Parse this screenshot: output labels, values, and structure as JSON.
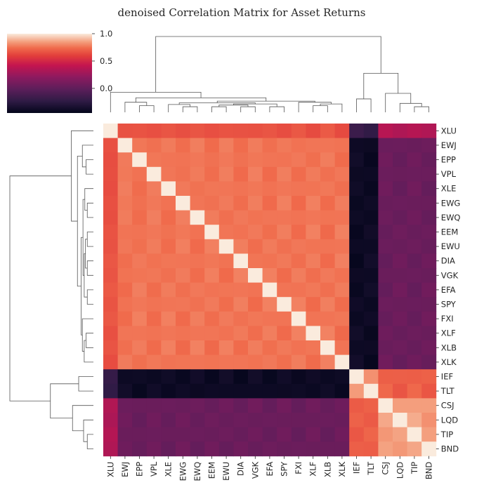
{
  "chart_data": {
    "type": "heatmap",
    "title": "denoised Correlation Matrix for Asset Returns",
    "labels": [
      "XLU",
      "EWJ",
      "EPP",
      "VPL",
      "XLE",
      "EWG",
      "EWQ",
      "EEM",
      "EWU",
      "DIA",
      "VGK",
      "EFA",
      "SPY",
      "FXI",
      "XLF",
      "XLB",
      "XLK",
      "IEF",
      "TLT",
      "CSJ",
      "LQD",
      "TIP",
      "BND"
    ],
    "colorbar": {
      "min": -0.45,
      "max": 1.0,
      "ticks": [
        1.0,
        0.5,
        0.0
      ],
      "tick_labels": [
        "1.0",
        "0.5",
        "0.0"
      ]
    },
    "block_rho": {
      "XLU_equity": 0.66,
      "equity_equity": 0.76,
      "XLU_bond": -0.2,
      "equity_bond": -0.4,
      "XLU_credit": 0.35,
      "equity_credit": 0.05,
      "bond_bond": 0.82,
      "bond_credit": 0.7,
      "credit_credit": 0.85
    }
  }
}
